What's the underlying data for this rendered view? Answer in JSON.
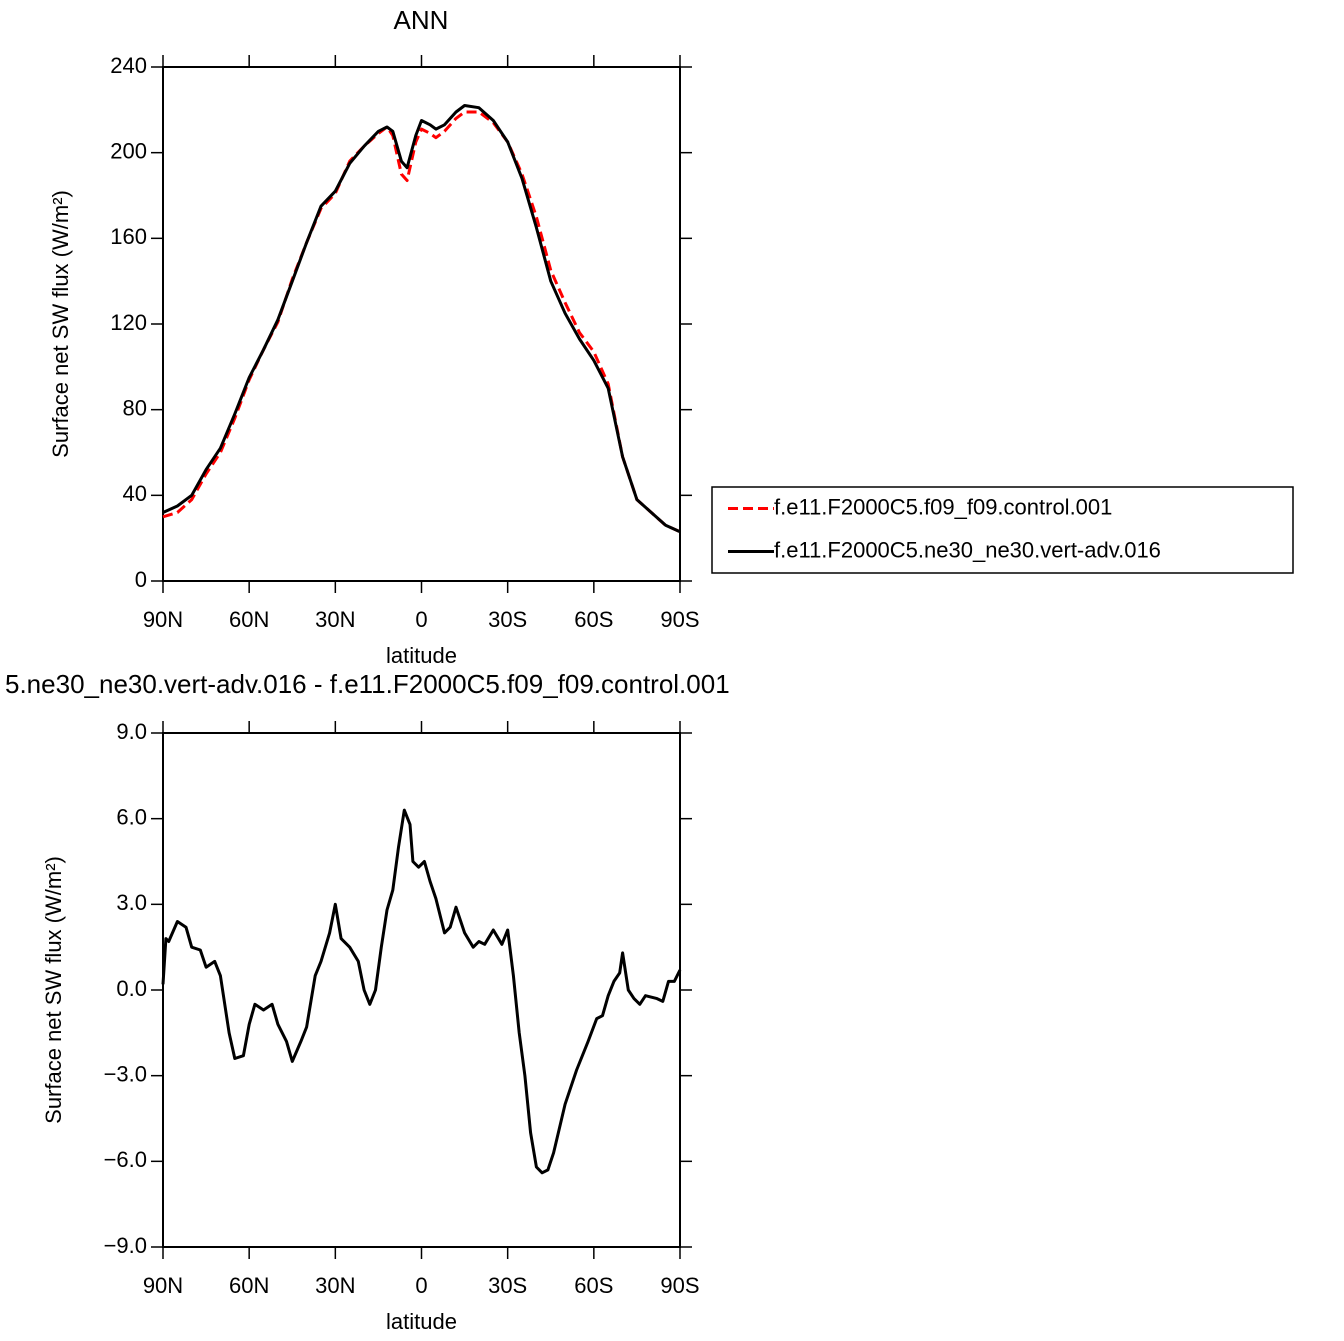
{
  "chart_data": [
    {
      "type": "line",
      "title": "ANN",
      "xlabel": "latitude",
      "ylabel": "Surface net SW flux (W/m²)",
      "x": [
        90,
        85,
        80,
        75,
        70,
        65,
        60,
        55,
        50,
        45,
        40,
        35,
        30,
        25,
        20,
        15,
        12,
        10,
        7,
        5,
        2,
        0,
        -3,
        -5,
        -8,
        -12,
        -15,
        -20,
        -25,
        -30,
        -35,
        -40,
        -45,
        -50,
        -55,
        -60,
        -65,
        -70,
        -75,
        -80,
        -85,
        -90
      ],
      "xlim": [
        90,
        -90
      ],
      "xticks": [
        {
          "value": 90,
          "label": "90N"
        },
        {
          "value": 60,
          "label": "60N"
        },
        {
          "value": 30,
          "label": "30N"
        },
        0,
        {
          "value": -30,
          "label": "30S"
        },
        {
          "value": -60,
          "label": "60S"
        },
        {
          "value": -90,
          "label": "90S"
        }
      ],
      "ylim": [
        0,
        240
      ],
      "yticks": [
        0,
        40,
        80,
        120,
        160,
        200,
        240
      ],
      "legend": "right",
      "series": [
        {
          "name": "f.e11.F2000C5.f09_f09.control.001",
          "color": "#ff0000",
          "dashed": true,
          "values": [
            30,
            32,
            38,
            50,
            60,
            76,
            94,
            108,
            121,
            141,
            158,
            174,
            181,
            196,
            203,
            209,
            212,
            208,
            190,
            187,
            205,
            211,
            209,
            207,
            210,
            216,
            219,
            219,
            214,
            205,
            190,
            170,
            145,
            130,
            116,
            107,
            92,
            58,
            38,
            32,
            26,
            23
          ]
        },
        {
          "name": "f.e11.F2000C5.ne30_ne30.vert-adv.016",
          "color": "#000000",
          "dashed": false,
          "values": [
            32,
            35,
            40,
            52,
            62,
            78,
            95,
            108,
            122,
            140,
            158,
            175,
            182,
            195,
            203,
            210,
            212,
            210,
            196,
            193,
            208,
            215,
            213,
            211,
            213,
            219,
            222,
            221,
            215,
            205,
            188,
            165,
            140,
            125,
            113,
            103,
            90,
            58,
            38,
            32,
            26,
            23
          ]
        }
      ]
    },
    {
      "type": "line",
      "title": "5.ne30_ne30.vert-adv.016 - f.e11.F2000C5.f09_f09.control.001",
      "xlabel": "latitude",
      "ylabel": "Surface net SW flux (W/m²)",
      "x": [
        90,
        89,
        88,
        85,
        82,
        80,
        77,
        75,
        72,
        70,
        67,
        65,
        62,
        60,
        58,
        55,
        52,
        50,
        47,
        45,
        42,
        40,
        37,
        35,
        32,
        30,
        28,
        25,
        22,
        20,
        18,
        16,
        14,
        12,
        10,
        8,
        6,
        4,
        3,
        1,
        -1,
        -3,
        -5,
        -8,
        -10,
        -12,
        -15,
        -18,
        -20,
        -22,
        -25,
        -28,
        -30,
        -32,
        -34,
        -36,
        -38,
        -40,
        -42,
        -44,
        -46,
        -50,
        -54,
        -58,
        -61,
        -63,
        -65,
        -67,
        -69,
        -70,
        -72,
        -74,
        -76,
        -78,
        -82,
        -84,
        -86,
        -88,
        -90
      ],
      "xlim": [
        90,
        -90
      ],
      "xticks": [
        {
          "value": 90,
          "label": "90N"
        },
        {
          "value": 60,
          "label": "60N"
        },
        {
          "value": 30,
          "label": "30N"
        },
        0,
        {
          "value": -30,
          "label": "30S"
        },
        {
          "value": -60,
          "label": "60S"
        },
        {
          "value": -90,
          "label": "90S"
        }
      ],
      "ylim": [
        -9,
        9
      ],
      "yticks": [
        {
          "value": -9,
          "label": "−9.0"
        },
        {
          "value": -6,
          "label": "−6.0"
        },
        {
          "value": -3,
          "label": "−3.0"
        },
        {
          "value": 0,
          "label": "0.0"
        },
        {
          "value": 3,
          "label": "3.0"
        },
        {
          "value": 6,
          "label": "6.0"
        },
        {
          "value": 9,
          "label": "9.0"
        }
      ],
      "color": "#000000",
      "values": [
        0.2,
        1.8,
        1.7,
        2.4,
        2.2,
        1.5,
        1.4,
        0.8,
        1.0,
        0.5,
        -1.5,
        -2.4,
        -2.3,
        -1.2,
        -0.5,
        -0.7,
        -0.5,
        -1.2,
        -1.8,
        -2.5,
        -1.8,
        -1.3,
        0.5,
        1.0,
        2.0,
        3.0,
        1.8,
        1.5,
        1.0,
        0.0,
        -0.5,
        0.0,
        1.5,
        2.8,
        3.5,
        5.0,
        6.3,
        5.8,
        4.5,
        4.3,
        4.5,
        3.8,
        3.2,
        2.0,
        2.2,
        2.9,
        2.0,
        1.5,
        1.7,
        1.6,
        2.1,
        1.6,
        2.1,
        0.5,
        -1.5,
        -3.0,
        -5.0,
        -6.2,
        -6.4,
        -6.3,
        -5.7,
        -4.0,
        -2.8,
        -1.8,
        -1.0,
        -0.9,
        -0.2,
        0.3,
        0.6,
        1.3,
        0.0,
        -0.3,
        -0.5,
        -0.2,
        -0.3,
        -0.4,
        0.3,
        0.3,
        0.7
      ]
    }
  ]
}
